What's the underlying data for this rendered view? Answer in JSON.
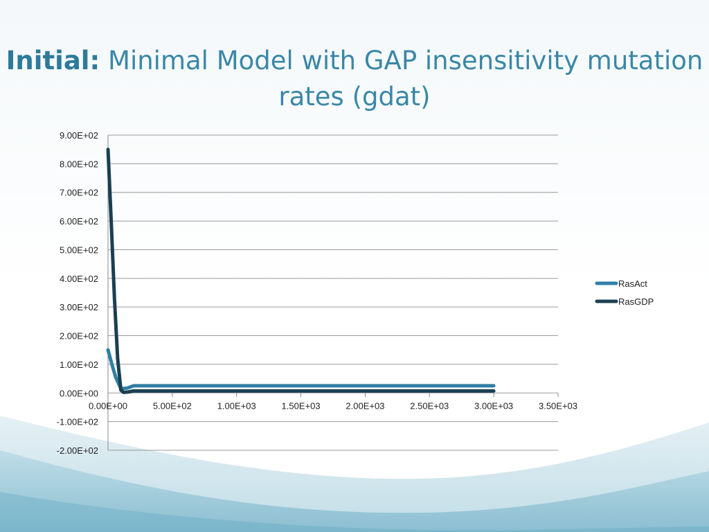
{
  "slide": {
    "title_prefix": "Initial:",
    "title_main": "Minimal Model with GAP insensitivity mutation rates (gdat)"
  },
  "chart_data": {
    "type": "line",
    "title": "",
    "xlabel": "",
    "ylabel": "",
    "xlim": [
      0,
      3500
    ],
    "ylim": [
      -200,
      900
    ],
    "x_ticks": [
      0,
      500,
      1000,
      1500,
      2000,
      2500,
      3000,
      3500
    ],
    "x_tick_labels": [
      "0.00E+00",
      "5.00E+02",
      "1.00E+03",
      "1.50E+03",
      "2.00E+03",
      "2.50E+03",
      "3.00E+03",
      "3.50E+03"
    ],
    "y_ticks": [
      900,
      800,
      700,
      600,
      500,
      400,
      300,
      200,
      100,
      0,
      -100,
      -200
    ],
    "y_tick_labels": [
      "9.00E+02",
      "8.00E+02",
      "7.00E+02",
      "6.00E+02",
      "5.00E+02",
      "4.00E+02",
      "3.00E+02",
      "2.00E+02",
      "1.00E+02",
      "0.00E+00",
      "-1.00E+02",
      "-2.00E+02"
    ],
    "grid": true,
    "legend_position": "right",
    "series": [
      {
        "name": "RasAct",
        "color": "#2f7fa6",
        "x": [
          0,
          30,
          60,
          100,
          150,
          200,
          3000
        ],
        "y": [
          150,
          100,
          55,
          15,
          17,
          25,
          25
        ]
      },
      {
        "name": "RasGDP",
        "color": "#1b3f52",
        "x": [
          0,
          25,
          50,
          75,
          100,
          120,
          150,
          200,
          3000
        ],
        "y": [
          850,
          600,
          330,
          120,
          10,
          2,
          3,
          7,
          7
        ]
      }
    ]
  }
}
